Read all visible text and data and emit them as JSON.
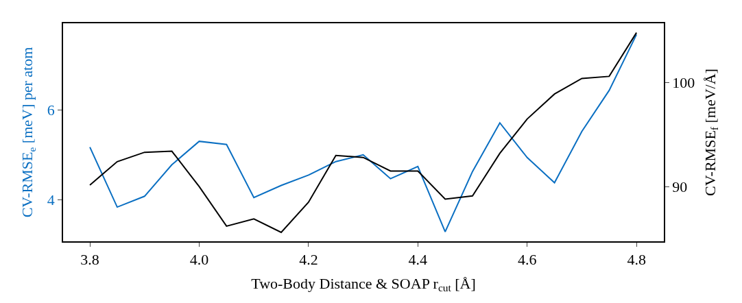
{
  "chart_data": {
    "type": "line",
    "xlabel": "Two-Body Distance & SOAP r$_{cut}$ [Å]",
    "ylabel": "CV-RMSE$_{e}$ [meV] per atom",
    "y2label": "CV-RMSE$_{f}$ [meV/Å]",
    "x": [
      3.8,
      3.85,
      3.9,
      3.95,
      4.0,
      4.05,
      4.1,
      4.15,
      4.2,
      4.25,
      4.3,
      4.35,
      4.4,
      4.45,
      4.5,
      4.55,
      4.6,
      4.65,
      4.7,
      4.75,
      4.8
    ],
    "series": [
      {
        "color": "#0a6fc2",
        "values": [
          5.17,
          3.84,
          4.08,
          4.78,
          5.3,
          5.23,
          4.05,
          4.32,
          4.55,
          4.85,
          5.0,
          4.47,
          4.74,
          3.29,
          4.63,
          5.71,
          4.94,
          4.38,
          5.52,
          6.43,
          7.67
        ]
      },
      {
        "color": "#000000",
        "axis": "y2",
        "values": [
          90.15,
          92.4,
          93.3,
          93.4,
          90.0,
          86.2,
          86.9,
          85.6,
          88.5,
          93.0,
          92.8,
          91.5,
          91.5,
          88.8,
          89.1,
          93.2,
          96.5,
          98.9,
          100.4,
          100.6,
          104.8
        ]
      }
    ],
    "xlim": [
      3.751,
      4.85
    ],
    "xticks": [
      3.8,
      {
        "value": 4,
        "label": "4.0"
      },
      4.2,
      4.4,
      4.6,
      4.8
    ],
    "ylim": [
      3.08,
      7.92
    ],
    "yticks": [
      4,
      6
    ],
    "y2lim": [
      84.74,
      105.7
    ],
    "y2ticks": [
      90,
      100
    ],
    "marker": "none",
    "line_style": "solid"
  }
}
